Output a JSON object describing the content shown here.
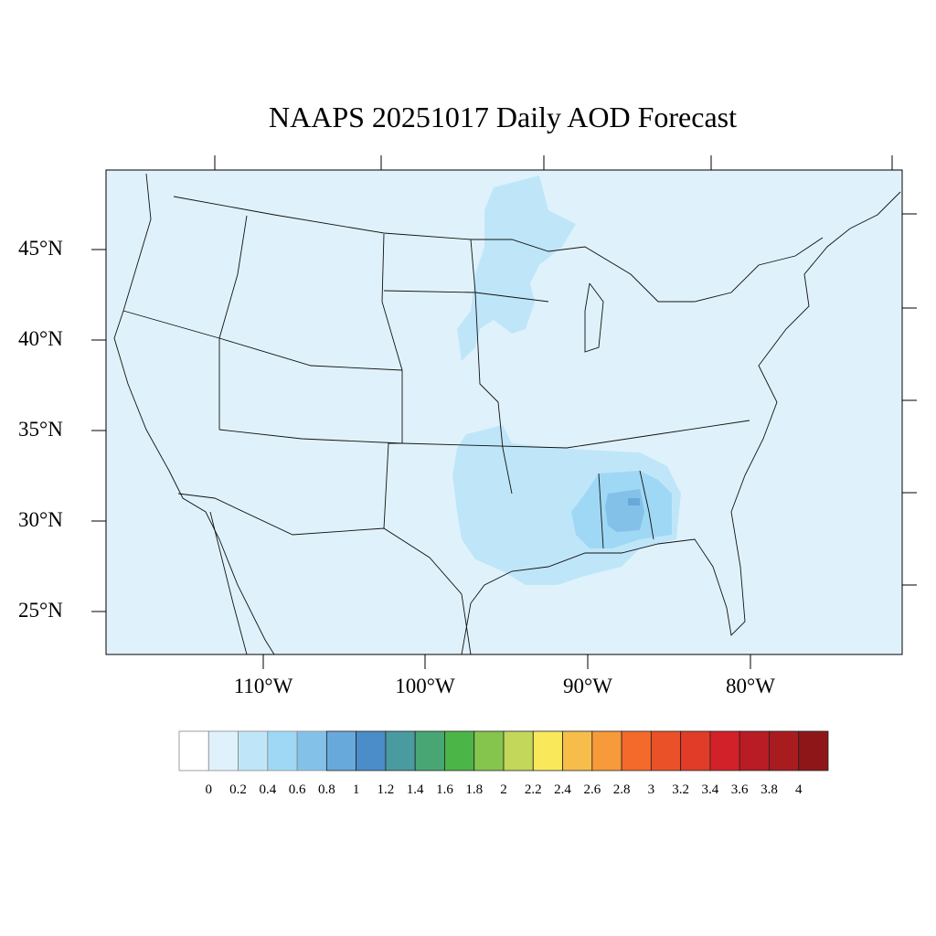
{
  "title": "NAAPS 20251017 Daily AOD Forecast",
  "map": {
    "background_color": "#dff2fb",
    "lat_labels": [
      "45°N",
      "40°N",
      "35°N",
      "30°N",
      "25°N"
    ],
    "lon_labels": [
      "110°W",
      "100°W",
      "90°W",
      "80°W"
    ],
    "plumes": [
      {
        "region": "Upper Midwest (MN/WI/IA)",
        "aod_bin": "0.2-0.4",
        "color": "#bfe6f8"
      },
      {
        "region": "Southern Plains / Lower Mississippi",
        "aod_bin": "0.2-0.4",
        "color": "#bfe6f8"
      },
      {
        "region": "Mississippi / Alabama / Georgia",
        "aod_bin": "0.4-0.6",
        "color": "#9fd8f4"
      },
      {
        "region": "Alabama core",
        "aod_bin": "0.6-0.8",
        "color": "#84c1e8"
      },
      {
        "region": "Alabama peak",
        "aod_bin": "0.8-1",
        "color": "#68a9dc"
      }
    ]
  },
  "colorbar": {
    "labels": [
      "0",
      "0.2",
      "0.4",
      "0.6",
      "0.8",
      "1",
      "1.2",
      "1.4",
      "1.6",
      "1.8",
      "2",
      "2.2",
      "2.4",
      "2.6",
      "2.8",
      "3",
      "3.2",
      "3.4",
      "3.6",
      "3.8",
      "4"
    ],
    "colors": [
      "#ffffff",
      "#dff2fb",
      "#bfe6f8",
      "#9fd8f4",
      "#84c1e8",
      "#68a9dc",
      "#4a8dc8",
      "#4a9ba0",
      "#48a674",
      "#4bb548",
      "#85c54e",
      "#c3d85a",
      "#f8e85a",
      "#f7bd4a",
      "#f79a3a",
      "#f46a2a",
      "#ea5128",
      "#e03c28",
      "#d22128",
      "#b91c24",
      "#a81c20",
      "#8e1619"
    ]
  }
}
